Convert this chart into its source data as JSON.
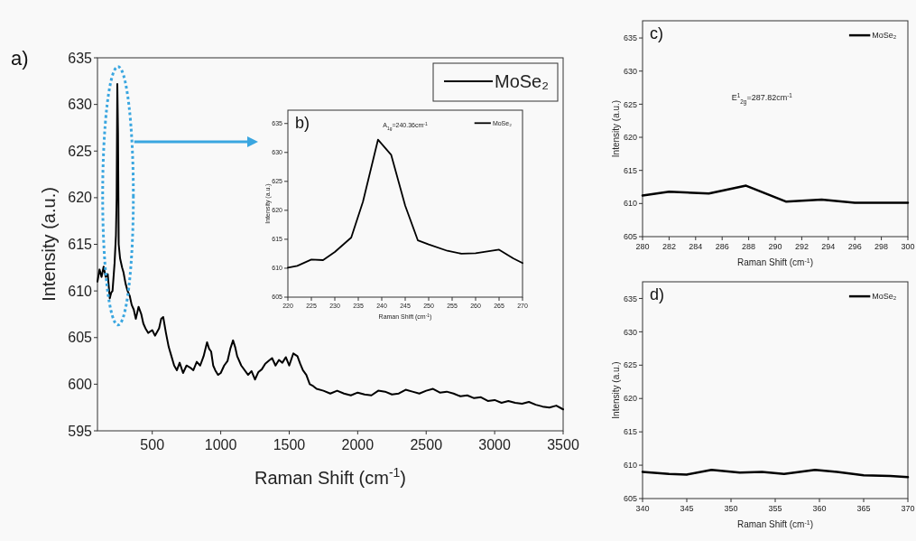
{
  "chart_data": [
    {
      "type": "line",
      "xlabel": "Raman Shift (cm$^{-1}$)",
      "ylabel": "Intensity (a.u.)",
      "annotations": [
        "a)"
      ],
      "legend": "top right",
      "xlim": [
        100,
        3500
      ],
      "xticks": [
        500,
        1000,
        1500,
        2000,
        2500,
        3000,
        3500
      ],
      "ylim": [
        595,
        635
      ],
      "yticks": [
        595,
        600,
        605,
        610,
        615,
        620,
        625,
        630,
        635
      ],
      "series": [
        {
          "name": "MoSe₂",
          "color": "#000000",
          "x": [
            100,
            115,
            130,
            145,
            160,
            175,
            190,
            200,
            210,
            225,
            235,
            240,
            245,
            250,
            255,
            265,
            280,
            290,
            305,
            320,
            335,
            350,
            365,
            380,
            400,
            420,
            435,
            450,
            470,
            500,
            520,
            550,
            565,
            580,
            600,
            620,
            640,
            660,
            680,
            700,
            725,
            750,
            775,
            800,
            825,
            850,
            875,
            900,
            915,
            930,
            945,
            960,
            980,
            1000,
            1025,
            1050,
            1070,
            1090,
            1105,
            1120,
            1150,
            1200,
            1225,
            1250,
            1275,
            1300,
            1325,
            1350,
            1375,
            1400,
            1425,
            1450,
            1475,
            1500,
            1530,
            1560,
            1580,
            1600,
            1625,
            1650,
            1675,
            1700,
            1750,
            1800,
            1850,
            1900,
            1950,
            2000,
            2050,
            2100,
            2150,
            2200,
            2250,
            2300,
            2350,
            2400,
            2450,
            2500,
            2550,
            2600,
            2650,
            2700,
            2750,
            2800,
            2850,
            2900,
            2950,
            3000,
            3050,
            3100,
            3150,
            3200,
            3250,
            3300,
            3350,
            3400,
            3450,
            3500
          ],
          "values": [
            611,
            612.3,
            611.5,
            612.6,
            611.5,
            611.8,
            609.2,
            609.8,
            610,
            613,
            616,
            620,
            632.2,
            627,
            615,
            613.5,
            612.5,
            612,
            610.8,
            610,
            609.5,
            608.5,
            608,
            607,
            608.3,
            607.5,
            606.5,
            606,
            605.5,
            605.8,
            605.2,
            606,
            607,
            607.2,
            605.5,
            604,
            603,
            602,
            601.5,
            602.3,
            601.2,
            602,
            601.8,
            601.5,
            602.4,
            602,
            603,
            604.5,
            603.8,
            603.5,
            602,
            601.5,
            601,
            601.2,
            602,
            602.5,
            603.8,
            604.7,
            604,
            603,
            602,
            601,
            601.4,
            600.5,
            601.3,
            601.6,
            602.2,
            602.5,
            602.8,
            602,
            602.6,
            602.3,
            602.9,
            602,
            603.3,
            603,
            602.2,
            601.5,
            601,
            600,
            599.8,
            599.5,
            599.3,
            599,
            599.3,
            599,
            598.8,
            599.1,
            598.9,
            598.8,
            599.3,
            599.2,
            598.9,
            599,
            599.4,
            599.2,
            599,
            599.3,
            599.5,
            599.1,
            599.2,
            599,
            598.7,
            598.8,
            598.5,
            598.6,
            598.2,
            598.3,
            598,
            598.2,
            598,
            597.9,
            598.1,
            597.8,
            597.6,
            597.5,
            597.7,
            597.3
          ]
        }
      ]
    },
    {
      "type": "line",
      "xlabel": "Raman Shift (cm$^{-1}$)",
      "ylabel": "Intensity (a.u.)",
      "annotations": [
        "b)",
        "A$_{1g}$=240.36cm$^{-1}$"
      ],
      "legend": "top right",
      "xlim": [
        220,
        270
      ],
      "xticks": [
        220,
        225,
        230,
        235,
        240,
        245,
        250,
        255,
        260,
        265,
        270
      ],
      "ylim": [
        605,
        637.3
      ],
      "yticks": [
        605,
        610,
        615,
        620,
        625,
        630,
        635
      ],
      "series": [
        {
          "name": "MoSe₂",
          "color": "#000000",
          "x": [
            220,
            222,
            225,
            227.5,
            230,
            233.5,
            236,
            239.2,
            242,
            245,
            247.7,
            250,
            254,
            257,
            260,
            265,
            268,
            270
          ],
          "values": [
            610.1,
            610.4,
            611.5,
            611.4,
            612.8,
            615.3,
            621.5,
            632.2,
            629.6,
            620.8,
            614.8,
            614.1,
            613,
            612.5,
            612.6,
            613.2,
            611.7,
            610.9
          ]
        }
      ]
    },
    {
      "type": "line",
      "xlabel": "Raman Shift (cm$^{-1}$)",
      "ylabel": "Intensity (a.u.)",
      "annotations": [
        "c)",
        "E$^{1}$$_{2g}$=287.82cm$^{-1}$"
      ],
      "legend": "top right",
      "xlim": [
        280,
        300
      ],
      "xticks": [
        280,
        282,
        284,
        286,
        288,
        290,
        292,
        294,
        296,
        298,
        300
      ],
      "ylim": [
        605,
        637.6
      ],
      "yticks": [
        605,
        610,
        615,
        620,
        625,
        630,
        635
      ],
      "series": [
        {
          "name": "MoSe₂",
          "color": "#000000",
          "x": [
            280,
            282,
            285,
            287.8,
            290.8,
            293.5,
            296,
            300
          ],
          "values": [
            611.2,
            611.8,
            611.5,
            612.7,
            610.3,
            610.6,
            610.1,
            610.1
          ]
        }
      ]
    },
    {
      "type": "line",
      "xlabel": "Raman Shift (cm$^{-1}$)",
      "ylabel": "Intensity (a.u.)",
      "annotations": [
        "d)"
      ],
      "legend": "top right",
      "xlim": [
        340,
        370
      ],
      "xticks": [
        340,
        345,
        350,
        355,
        360,
        365,
        370
      ],
      "ylim": [
        605,
        637.5
      ],
      "yticks": [
        605,
        610,
        615,
        620,
        625,
        630,
        635
      ],
      "series": [
        {
          "name": "MoSe₂",
          "color": "#000000",
          "x": [
            340,
            343,
            345,
            347.8,
            351,
            353.5,
            356,
            359.5,
            362,
            365,
            368,
            370
          ],
          "values": [
            609,
            608.7,
            608.6,
            609.3,
            608.9,
            609,
            608.7,
            609.3,
            609,
            608.5,
            608.4,
            608.2
          ]
        }
      ]
    }
  ]
}
